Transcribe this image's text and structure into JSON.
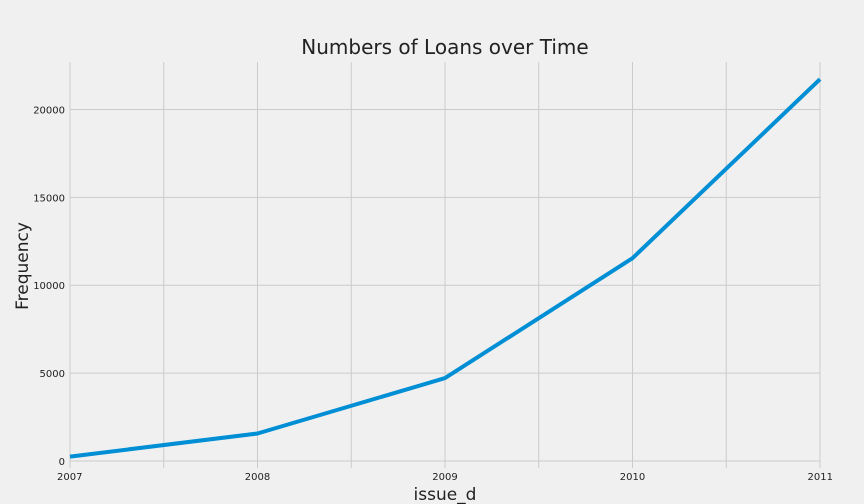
{
  "chart_data": {
    "type": "line",
    "title": "Numbers of Loans over Time",
    "xlabel": "issue_d",
    "ylabel": "Frequency",
    "x": [
      2007,
      2008,
      2009,
      2010,
      2011
    ],
    "x_tick_labels": [
      "2007",
      "2008",
      "2009",
      "2010",
      "2011"
    ],
    "x_minor_ticks": [
      2007.5,
      2008.5,
      2009.5,
      2010.5
    ],
    "xlim": [
      2007,
      2011
    ],
    "y_ticks": [
      0,
      5000,
      10000,
      15000,
      20000
    ],
    "y_tick_labels": [
      "0",
      "5000",
      "10000",
      "15000",
      "20000"
    ],
    "ylim": [
      -400,
      22700
    ],
    "series": [
      {
        "values": [
          251,
          1562,
          4716,
          11536,
          21721
        ]
      }
    ],
    "grid": true,
    "colors": {
      "line": "#008fd5",
      "grid": "#cbcbcb",
      "background": "#f0f0f0"
    }
  }
}
